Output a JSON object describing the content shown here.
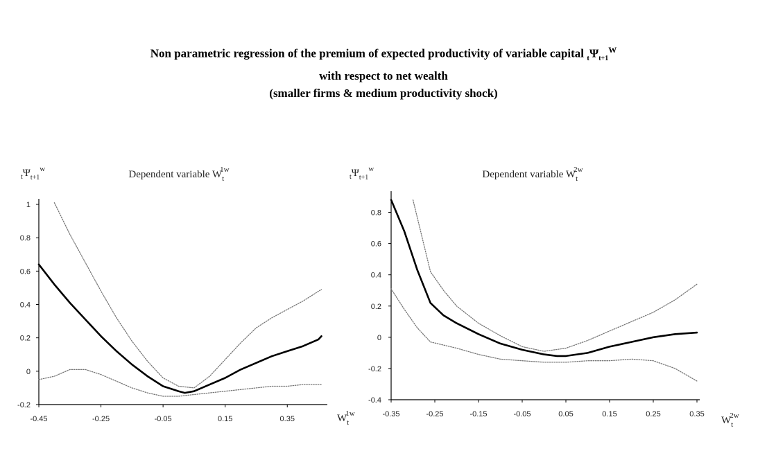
{
  "figure": {
    "title_line1": "Non parametric regression of the premium of expected productivity of variable capital",
    "title_symbol_sub_pre": "t",
    "title_symbol": "Ψ",
    "title_symbol_sub": "t+1",
    "title_symbol_sup": "W",
    "title_line2": "with respect to net wealth",
    "title_line3": "(smaller firms & medium productivity shock)"
  },
  "chart_data": [
    {
      "type": "line",
      "title": "Dependent variable W",
      "title_sub": "t",
      "title_sup": "1w",
      "ylabel_pre": "t",
      "ylabel_symbol": "Ψ",
      "ylabel_sub": "t+1",
      "ylabel_sup": "w",
      "xlabel": "W",
      "xlabel_sub": "t",
      "xlabel_sup": "1w",
      "xlim": [
        -0.45,
        0.47
      ],
      "ylim": [
        -0.2,
        1.0
      ],
      "xticks": [
        "-0.45",
        "-0.25",
        "-0.05",
        "0.15",
        "0.35"
      ],
      "xtick_values": [
        -0.45,
        -0.25,
        -0.05,
        0.15,
        0.35
      ],
      "yticks": [
        "1",
        "0.8",
        "0.6",
        "0.4",
        "0.2",
        "0",
        "-0.2"
      ],
      "ytick_values": [
        1.0,
        0.8,
        0.6,
        0.4,
        0.2,
        0.0,
        -0.2
      ],
      "grid": false,
      "series": [
        {
          "style": "solid",
          "x": [
            -0.45,
            -0.4,
            -0.35,
            -0.3,
            -0.25,
            -0.2,
            -0.15,
            -0.1,
            -0.05,
            0.0,
            0.02,
            0.05,
            0.1,
            0.15,
            0.2,
            0.25,
            0.3,
            0.35,
            0.4,
            0.45,
            0.46
          ],
          "y": [
            0.64,
            0.52,
            0.41,
            0.31,
            0.21,
            0.12,
            0.04,
            -0.03,
            -0.09,
            -0.12,
            -0.13,
            -0.12,
            -0.08,
            -0.04,
            0.01,
            0.05,
            0.09,
            0.12,
            0.15,
            0.19,
            0.21
          ]
        },
        {
          "style": "dotted",
          "x": [
            -0.4,
            -0.35,
            -0.3,
            -0.25,
            -0.2,
            -0.15,
            -0.1,
            -0.05,
            0.0,
            0.05,
            0.1,
            0.15,
            0.2,
            0.25,
            0.3,
            0.35,
            0.4,
            0.46
          ],
          "y": [
            1.01,
            0.82,
            0.65,
            0.48,
            0.32,
            0.18,
            0.06,
            -0.04,
            -0.09,
            -0.1,
            -0.03,
            0.07,
            0.17,
            0.26,
            0.32,
            0.37,
            0.42,
            0.49
          ]
        },
        {
          "style": "dotted",
          "x": [
            -0.45,
            -0.4,
            -0.35,
            -0.3,
            -0.25,
            -0.2,
            -0.15,
            -0.1,
            -0.05,
            0.0,
            0.05,
            0.1,
            0.15,
            0.2,
            0.25,
            0.3,
            0.35,
            0.4,
            0.46
          ],
          "y": [
            -0.05,
            -0.03,
            0.01,
            0.01,
            -0.02,
            -0.06,
            -0.1,
            -0.13,
            -0.15,
            -0.15,
            -0.14,
            -0.13,
            -0.12,
            -0.11,
            -0.1,
            -0.09,
            -0.09,
            -0.08,
            -0.08
          ]
        }
      ]
    },
    {
      "type": "line",
      "title": "Dependent variable W",
      "title_sub": "t",
      "title_sup": "2w",
      "ylabel_pre": "t",
      "ylabel_symbol": "Ψ",
      "ylabel_sub": "t+1",
      "ylabel_sup": "w",
      "xlabel": "W",
      "xlabel_sub": "t",
      "xlabel_sup": "2w",
      "xlim": [
        -0.35,
        0.35
      ],
      "ylim": [
        -0.4,
        0.9
      ],
      "xticks": [
        "-0.35",
        "-0.25",
        "-0.15",
        "-0.05",
        "0.05",
        "0.15",
        "0.25",
        "0.35"
      ],
      "xtick_values": [
        -0.35,
        -0.25,
        -0.15,
        -0.05,
        0.05,
        0.15,
        0.25,
        0.35
      ],
      "yticks": [
        "0.8",
        "0.6",
        "0.4",
        "0.2",
        "0",
        "-0.2",
        "-0.4"
      ],
      "ytick_values": [
        0.8,
        0.6,
        0.4,
        0.2,
        0.0,
        -0.2,
        -0.4
      ],
      "grid": false,
      "series": [
        {
          "style": "solid",
          "x": [
            -0.35,
            -0.32,
            -0.29,
            -0.26,
            -0.23,
            -0.2,
            -0.15,
            -0.1,
            -0.05,
            0.0,
            0.03,
            0.05,
            0.1,
            0.15,
            0.2,
            0.25,
            0.3,
            0.35
          ],
          "y": [
            0.88,
            0.68,
            0.43,
            0.22,
            0.14,
            0.09,
            0.02,
            -0.04,
            -0.08,
            -0.11,
            -0.12,
            -0.12,
            -0.1,
            -0.06,
            -0.03,
            0.0,
            0.02,
            0.03
          ]
        },
        {
          "style": "dotted",
          "x": [
            -0.3,
            -0.28,
            -0.26,
            -0.23,
            -0.2,
            -0.15,
            -0.1,
            -0.05,
            0.0,
            0.05,
            0.1,
            0.15,
            0.2,
            0.25,
            0.3,
            0.35
          ],
          "y": [
            0.88,
            0.65,
            0.42,
            0.3,
            0.2,
            0.09,
            0.01,
            -0.06,
            -0.09,
            -0.07,
            -0.02,
            0.04,
            0.1,
            0.16,
            0.24,
            0.34
          ]
        },
        {
          "style": "dotted",
          "x": [
            -0.35,
            -0.32,
            -0.29,
            -0.26,
            -0.23,
            -0.2,
            -0.15,
            -0.1,
            -0.05,
            0.0,
            0.05,
            0.1,
            0.15,
            0.2,
            0.25,
            0.3,
            0.35
          ],
          "y": [
            0.31,
            0.18,
            0.06,
            -0.03,
            -0.05,
            -0.07,
            -0.11,
            -0.14,
            -0.15,
            -0.16,
            -0.16,
            -0.15,
            -0.15,
            -0.14,
            -0.15,
            -0.2,
            -0.28
          ]
        }
      ]
    }
  ]
}
